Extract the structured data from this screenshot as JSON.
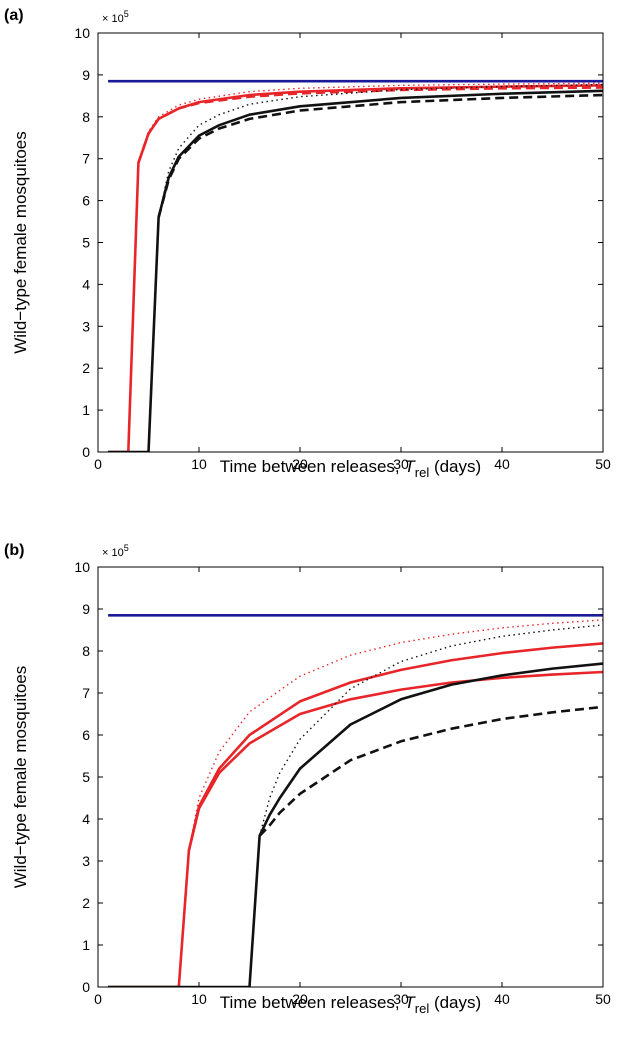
{
  "chart_data": [
    {
      "type": "line",
      "panel_label": "(a)",
      "xlabel_main": "Time between releases, ",
      "xlabel_var": "T",
      "xlabel_sub": "rel",
      "xlabel_unit": " (days)",
      "ylabel": "Wild−type female mosquitoes",
      "y_multiplier": "× 10",
      "y_multiplier_exp": "5",
      "xlim": [
        0,
        50
      ],
      "ylim": [
        0,
        10
      ],
      "xticks": [
        0,
        10,
        20,
        30,
        40,
        50
      ],
      "yticks": [
        0,
        1,
        2,
        3,
        4,
        5,
        6,
        7,
        8,
        9,
        10
      ],
      "series": [
        {
          "color": "#1a1a99",
          "style": "solid",
          "x": [
            1,
            50
          ],
          "y": [
            8.85,
            8.85
          ]
        },
        {
          "color": "#e8262a",
          "style": "solid",
          "x": [
            1,
            3,
            4,
            5,
            6,
            8,
            10,
            15,
            20,
            30,
            40,
            50
          ],
          "y": [
            0,
            0,
            6.9,
            7.6,
            7.95,
            8.2,
            8.35,
            8.52,
            8.6,
            8.68,
            8.72,
            8.75
          ]
        },
        {
          "color": "#e8262a",
          "style": "dashed",
          "x": [
            4,
            5,
            6,
            8,
            10,
            15,
            20,
            30,
            40,
            50
          ],
          "y": [
            6.9,
            7.6,
            7.95,
            8.2,
            8.33,
            8.48,
            8.56,
            8.64,
            8.68,
            8.7
          ]
        },
        {
          "color": "#e8262a",
          "style": "dotted",
          "x": [
            4,
            5,
            6,
            8,
            10,
            15,
            20,
            30,
            40,
            50
          ],
          "y": [
            6.9,
            7.65,
            8.0,
            8.28,
            8.42,
            8.6,
            8.68,
            8.75,
            8.78,
            8.8
          ]
        },
        {
          "color": "#111111",
          "style": "solid",
          "x": [
            1,
            5,
            6,
            7,
            8,
            10,
            12,
            15,
            20,
            30,
            40,
            50
          ],
          "y": [
            0,
            0,
            5.6,
            6.55,
            7.05,
            7.55,
            7.8,
            8.05,
            8.25,
            8.45,
            8.55,
            8.62
          ]
        },
        {
          "color": "#111111",
          "style": "dashed",
          "x": [
            6,
            7,
            8,
            10,
            12,
            15,
            20,
            30,
            40,
            50
          ],
          "y": [
            5.6,
            6.5,
            7.0,
            7.48,
            7.72,
            7.95,
            8.15,
            8.35,
            8.45,
            8.52
          ]
        },
        {
          "color": "#111111",
          "style": "dotted",
          "x": [
            6,
            7,
            8,
            10,
            12,
            15,
            20,
            30,
            40,
            50
          ],
          "y": [
            5.6,
            6.7,
            7.25,
            7.8,
            8.05,
            8.3,
            8.48,
            8.65,
            8.72,
            8.77
          ]
        }
      ]
    },
    {
      "type": "line",
      "panel_label": "(b)",
      "xlabel_main": "Time between releases, ",
      "xlabel_var": "T",
      "xlabel_sub": "rel",
      "xlabel_unit": " (days)",
      "ylabel": "Wild−type female mosquitoes",
      "y_multiplier": "× 10",
      "y_multiplier_exp": "5",
      "xlim": [
        0,
        50
      ],
      "ylim": [
        0,
        10
      ],
      "xticks": [
        0,
        10,
        20,
        30,
        40,
        50
      ],
      "yticks": [
        0,
        1,
        2,
        3,
        4,
        5,
        6,
        7,
        8,
        9,
        10
      ],
      "series": [
        {
          "color": "#1a1a99",
          "style": "solid",
          "x": [
            1,
            50
          ],
          "y": [
            8.85,
            8.85
          ]
        },
        {
          "color": "#e8262a",
          "style": "solid",
          "x": [
            1,
            8,
            9,
            10,
            12,
            15,
            20,
            25,
            30,
            35,
            40,
            45,
            50
          ],
          "y": [
            0,
            0,
            3.25,
            4.3,
            5.2,
            6.0,
            6.8,
            7.25,
            7.55,
            7.78,
            7.95,
            8.08,
            8.18
          ]
        },
        {
          "color": "#e8262a",
          "style": "solid",
          "x": [
            9,
            10,
            12,
            15,
            20,
            25,
            30,
            35,
            40,
            45,
            50
          ],
          "y": [
            3.25,
            4.25,
            5.1,
            5.8,
            6.5,
            6.85,
            7.08,
            7.25,
            7.36,
            7.44,
            7.5
          ]
        },
        {
          "color": "#e8262a",
          "style": "dotted",
          "x": [
            9,
            10,
            12,
            15,
            20,
            25,
            30,
            35,
            40,
            45,
            50
          ],
          "y": [
            3.25,
            4.5,
            5.6,
            6.55,
            7.4,
            7.9,
            8.2,
            8.4,
            8.55,
            8.66,
            8.74
          ]
        },
        {
          "color": "#111111",
          "style": "solid",
          "x": [
            1,
            15,
            16,
            17,
            18,
            20,
            25,
            30,
            35,
            40,
            45,
            50
          ],
          "y": [
            0,
            0,
            3.6,
            4.1,
            4.5,
            5.2,
            6.25,
            6.85,
            7.2,
            7.42,
            7.58,
            7.7
          ]
        },
        {
          "color": "#111111",
          "style": "dashed",
          "x": [
            16,
            17,
            18,
            20,
            25,
            30,
            35,
            40,
            45,
            50
          ],
          "y": [
            3.6,
            3.85,
            4.15,
            4.6,
            5.4,
            5.85,
            6.15,
            6.38,
            6.54,
            6.67
          ]
        },
        {
          "color": "#111111",
          "style": "dotted",
          "x": [
            16,
            17,
            18,
            20,
            25,
            30,
            35,
            40,
            45,
            50
          ],
          "y": [
            3.6,
            4.5,
            5.1,
            5.9,
            7.1,
            7.75,
            8.12,
            8.35,
            8.5,
            8.62
          ]
        }
      ]
    }
  ]
}
